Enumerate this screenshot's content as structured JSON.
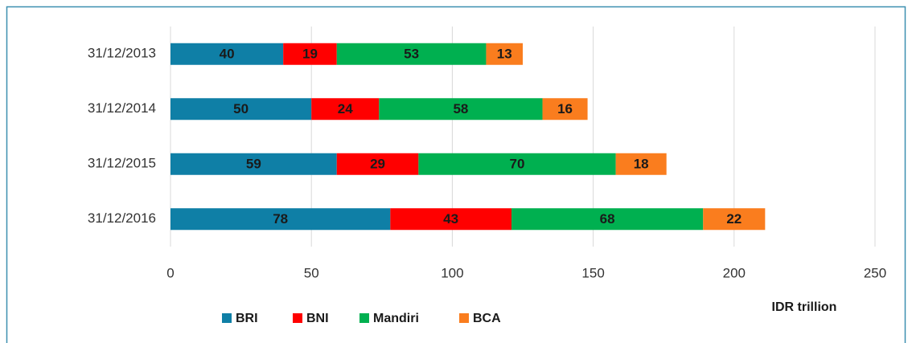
{
  "chart_data": {
    "type": "stacked_barh",
    "x_label": "IDR trillion",
    "categories": [
      "31/12/2013",
      "31/12/2014",
      "31/12/2015",
      "31/12/2016"
    ],
    "series": [
      {
        "name": "BRI",
        "color": "#0f7fa6",
        "values": [
          40,
          50,
          59,
          78
        ]
      },
      {
        "name": "BNI",
        "color": "#ff0000",
        "values": [
          19,
          24,
          29,
          43
        ]
      },
      {
        "name": "Mandiri",
        "color": "#00b050",
        "values": [
          53,
          58,
          70,
          68
        ]
      },
      {
        "name": "BCA",
        "color": "#fa7d1e",
        "values": [
          13,
          16,
          18,
          22
        ]
      }
    ],
    "xlim": [
      0,
      250
    ],
    "xticks": [
      0,
      50,
      100,
      150,
      200,
      250
    ],
    "grid": true,
    "legend": "bottom"
  }
}
